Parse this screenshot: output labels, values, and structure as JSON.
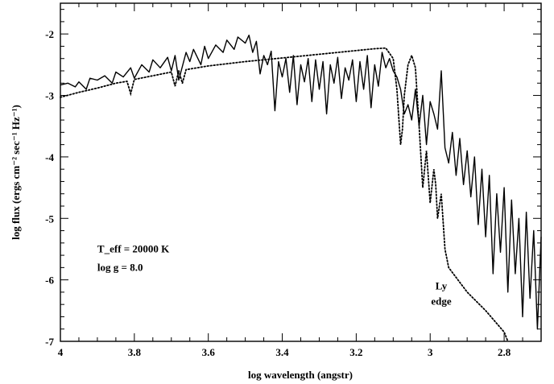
{
  "chart_data": {
    "type": "line",
    "xlabel": "log wavelength (angstr)",
    "ylabel": "log flux (ergs cm⁻² sec⁻¹ Hz⁻¹)",
    "xlim": [
      4.0,
      2.7
    ],
    "ylim": [
      -7,
      -1.5
    ],
    "x_axis_reversed": true,
    "x_ticks": [
      4,
      3.8,
      3.6,
      3.4,
      3.2,
      3,
      2.8
    ],
    "x_tick_labels": [
      "4",
      "3.8",
      "3.6",
      "3.4",
      "3.2",
      "3",
      "2.8"
    ],
    "y_ticks": [
      -7,
      -6,
      -5,
      -4,
      -3,
      -2
    ],
    "y_tick_labels": [
      "-7",
      "-6",
      "-5",
      "-4",
      "-3",
      "-2"
    ],
    "grid": false,
    "annotations": [
      {
        "text": "T_eff = 20000 K",
        "x": 3.9,
        "y": -5.5
      },
      {
        "text": "log g = 8.0",
        "x": 3.9,
        "y": -5.8
      },
      {
        "text": "Ly",
        "x": 2.97,
        "y": -6.1
      },
      {
        "text": "edge",
        "x": 2.97,
        "y": -6.35
      }
    ],
    "series": [
      {
        "style": "solid",
        "x": [
          4.0,
          3.98,
          3.96,
          3.95,
          3.93,
          3.92,
          3.9,
          3.88,
          3.86,
          3.85,
          3.83,
          3.81,
          3.8,
          3.78,
          3.76,
          3.75,
          3.73,
          3.71,
          3.7,
          3.69,
          3.68,
          3.66,
          3.65,
          3.64,
          3.62,
          3.61,
          3.6,
          3.58,
          3.56,
          3.55,
          3.53,
          3.52,
          3.5,
          3.49,
          3.48,
          3.47,
          3.46,
          3.45,
          3.44,
          3.43,
          3.42,
          3.41,
          3.4,
          3.39,
          3.38,
          3.37,
          3.36,
          3.35,
          3.34,
          3.33,
          3.32,
          3.31,
          3.3,
          3.29,
          3.28,
          3.27,
          3.26,
          3.25,
          3.24,
          3.23,
          3.22,
          3.21,
          3.2,
          3.19,
          3.18,
          3.17,
          3.16,
          3.15,
          3.14,
          3.13,
          3.12,
          3.11,
          3.1,
          3.09,
          3.08,
          3.07,
          3.06,
          3.05,
          3.04,
          3.03,
          3.02,
          3.01,
          3.0,
          2.99,
          2.98,
          2.97,
          2.96,
          2.95,
          2.94,
          2.93,
          2.92,
          2.91,
          2.9,
          2.89,
          2.88,
          2.87,
          2.86,
          2.85,
          2.84,
          2.83,
          2.82,
          2.81,
          2.8,
          2.79,
          2.78,
          2.77,
          2.76,
          2.75,
          2.74,
          2.73,
          2.72,
          2.71,
          2.7
        ],
        "y": [
          -2.83,
          -2.8,
          -2.86,
          -2.78,
          -2.9,
          -2.72,
          -2.75,
          -2.68,
          -2.8,
          -2.62,
          -2.7,
          -2.55,
          -2.72,
          -2.5,
          -2.62,
          -2.42,
          -2.55,
          -2.38,
          -2.6,
          -2.35,
          -2.75,
          -2.3,
          -2.45,
          -2.25,
          -2.5,
          -2.2,
          -2.4,
          -2.18,
          -2.3,
          -2.1,
          -2.25,
          -2.05,
          -2.15,
          -2.02,
          -2.3,
          -2.12,
          -2.65,
          -2.35,
          -2.5,
          -2.28,
          -3.25,
          -2.45,
          -2.7,
          -2.4,
          -2.95,
          -2.35,
          -3.15,
          -2.5,
          -2.78,
          -2.4,
          -3.1,
          -2.42,
          -2.9,
          -2.45,
          -3.3,
          -2.5,
          -2.8,
          -2.38,
          -3.05,
          -2.55,
          -2.75,
          -2.42,
          -3.1,
          -2.45,
          -2.9,
          -2.35,
          -3.2,
          -2.5,
          -2.85,
          -2.3,
          -2.55,
          -2.4,
          -2.6,
          -2.7,
          -2.9,
          -3.3,
          -3.15,
          -3.4,
          -2.9,
          -3.5,
          -3.0,
          -3.8,
          -3.1,
          -3.3,
          -3.55,
          -2.6,
          -3.85,
          -4.1,
          -3.6,
          -4.3,
          -3.7,
          -4.45,
          -3.9,
          -4.65,
          -4.0,
          -5.1,
          -4.2,
          -5.3,
          -4.3,
          -5.9,
          -4.6,
          -5.55,
          -4.5,
          -6.2,
          -4.7,
          -5.9,
          -5.0,
          -6.6,
          -4.9,
          -6.3,
          -5.2,
          -6.8,
          -5.3
        ]
      },
      {
        "style": "dotted",
        "x": [
          4.0,
          3.95,
          3.9,
          3.85,
          3.82,
          3.81,
          3.8,
          3.75,
          3.7,
          3.69,
          3.68,
          3.67,
          3.66,
          3.6,
          3.5,
          3.4,
          3.3,
          3.2,
          3.15,
          3.12,
          3.1,
          3.09,
          3.08,
          3.075,
          3.07,
          3.06,
          3.05,
          3.04,
          3.03,
          3.02,
          3.01,
          3.0,
          2.99,
          2.985,
          2.98,
          2.975,
          2.97,
          2.965,
          2.96,
          2.95,
          2.9,
          2.85,
          2.8,
          2.79
        ],
        "y": [
          -3.03,
          -2.95,
          -2.88,
          -2.8,
          -2.77,
          -2.97,
          -2.74,
          -2.68,
          -2.62,
          -2.85,
          -2.6,
          -2.8,
          -2.58,
          -2.52,
          -2.45,
          -2.39,
          -2.33,
          -2.27,
          -2.24,
          -2.23,
          -2.4,
          -2.9,
          -3.8,
          -3.55,
          -3.0,
          -2.5,
          -2.35,
          -2.55,
          -3.5,
          -4.5,
          -3.9,
          -4.75,
          -4.2,
          -4.45,
          -5.0,
          -4.8,
          -4.6,
          -5.05,
          -5.5,
          -5.8,
          -6.2,
          -6.5,
          -6.85,
          -7.0
        ]
      }
    ]
  }
}
